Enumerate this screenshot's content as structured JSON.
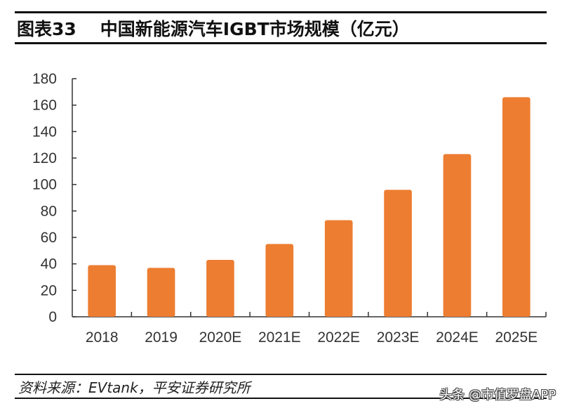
{
  "header": {
    "figure_number": "图表33",
    "title": "中国新能源汽车IGBT市场规模（亿元）"
  },
  "source": "资料来源：EVtank，平安证券研究所",
  "watermark": "头条 @市值罗盘APP",
  "colors": {
    "bar": "#ED7D31",
    "axis": "#333333"
  },
  "chart_data": {
    "type": "bar",
    "title": "中国新能源汽车IGBT市场规模（亿元）",
    "xlabel": "",
    "ylabel": "",
    "categories": [
      "2018",
      "2019",
      "2020E",
      "2021E",
      "2022E",
      "2023E",
      "2024E",
      "2025E"
    ],
    "values": [
      39,
      37,
      43,
      55,
      73,
      96,
      123,
      166
    ],
    "ylim": [
      0,
      180
    ],
    "yticks": [
      "0",
      "20",
      "40",
      "60",
      "80",
      "100",
      "120",
      "140",
      "160",
      "180"
    ],
    "grid": false,
    "legend": "none"
  }
}
